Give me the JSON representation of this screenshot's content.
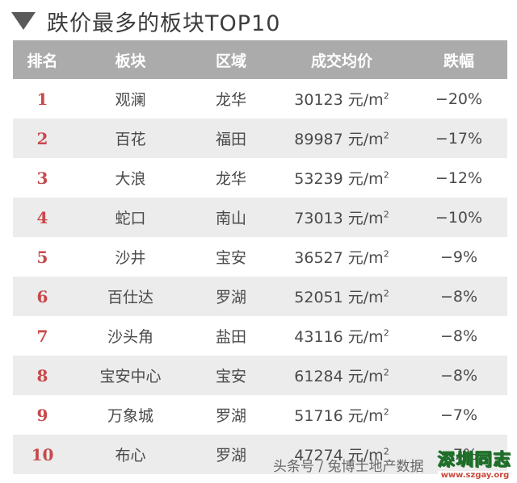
{
  "title": "跌价最多的板块TOP10",
  "headers": [
    "排名",
    "板块",
    "区域",
    "成交均价",
    "跌幅"
  ],
  "unit": "元/m",
  "unit_sup": "2",
  "rows": [
    {
      "rank": "1",
      "block": "观澜",
      "district": "龙华",
      "price": "30123",
      "drop": "−20%"
    },
    {
      "rank": "2",
      "block": "百花",
      "district": "福田",
      "price": "89987",
      "drop": "−17%"
    },
    {
      "rank": "3",
      "block": "大浪",
      "district": "龙华",
      "price": "53239",
      "drop": "−12%"
    },
    {
      "rank": "4",
      "block": "蛇口",
      "district": "南山",
      "price": "73013",
      "drop": "−10%"
    },
    {
      "rank": "5",
      "block": "沙井",
      "district": "宝安",
      "price": "36527",
      "drop": "−9%"
    },
    {
      "rank": "6",
      "block": "百仕达",
      "district": "罗湖",
      "price": "52051",
      "drop": "−8%"
    },
    {
      "rank": "7",
      "block": "沙头角",
      "district": "盐田",
      "price": "43116",
      "drop": "−8%"
    },
    {
      "rank": "8",
      "block": "宝安中心",
      "district": "宝安",
      "price": "61284",
      "drop": "−8%"
    },
    {
      "rank": "9",
      "block": "万象城",
      "district": "罗湖",
      "price": "51716",
      "drop": "−7%"
    },
    {
      "rank": "10",
      "block": "布心",
      "district": "罗湖",
      "price": "47274",
      "drop": "−7%"
    }
  ],
  "watermark": "头条号 / 兔博士地产数据",
  "logo": {
    "name": "深圳同志",
    "url": "www.szgay.org"
  }
}
